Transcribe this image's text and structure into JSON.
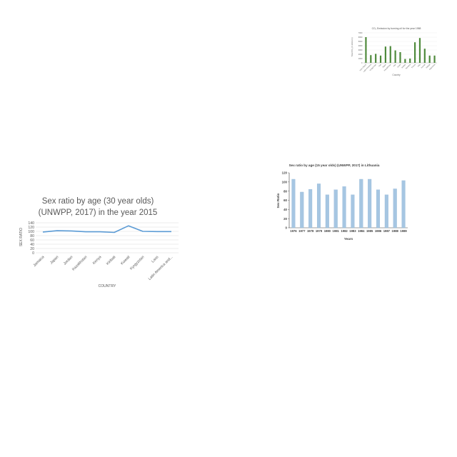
{
  "chart_data": [
    {
      "type": "bar",
      "title": "CO₂ Emission by burning oil for the year 1988",
      "xlabel": "Country",
      "ylabel": "Total CO₂ (in kilotons)",
      "ylim": [
        0,
        7000
      ],
      "yticks": [
        0,
        1000,
        2000,
        3000,
        4000,
        5000,
        6000,
        7000
      ],
      "grid": true,
      "categories": [
        "Non-OECD",
        "Latin America",
        "Kyrgyzstan",
        "Iraq",
        "Japan",
        "Kazakhstan",
        "Iran",
        "Israel",
        "Jordan",
        "Jamaica",
        "Kenya",
        "Italy",
        "Kuwait",
        "Kiribati",
        "Indonesia"
      ],
      "values": [
        6000,
        1800,
        2100,
        1700,
        3800,
        3900,
        2900,
        2500,
        900,
        1000,
        4800,
        5800,
        3300,
        1700,
        1700
      ],
      "color": "#4f8a3c"
    },
    {
      "type": "line",
      "title": "Sex ratio by age (30 year olds)\n(UNWPP, 2017) in the year 2015",
      "title_lines": [
        "Sex ratio by age (30 year olds)",
        "(UNWPP, 2017) in the year 2015"
      ],
      "xlabel": "COUNTRY",
      "ylabel": "SEX RATIO",
      "ylim": [
        0,
        140
      ],
      "yticks": [
        0,
        20,
        40,
        60,
        80,
        100,
        120,
        140
      ],
      "grid": true,
      "categories": [
        "Jamaica",
        "Japan",
        "Jordan",
        "Kazakhstan",
        "Kenya",
        "Kiribati",
        "Kuwait",
        "Kyrgyzstan",
        "Laos",
        "Latin America and..."
      ],
      "values": [
        97,
        103,
        102,
        98,
        98,
        95,
        126,
        100,
        99,
        99
      ],
      "color": "#5b9bd5"
    },
    {
      "type": "bar",
      "title": "Sex ratio by age (15 year olds) (UNWPP, 2017) in Lithuania",
      "xlabel": "Years",
      "ylabel": "Sex Ratio",
      "ylim": [
        0,
        120
      ],
      "yticks": [
        0,
        20,
        40,
        60,
        80,
        100,
        120
      ],
      "grid": false,
      "categories": [
        "1976",
        "1977",
        "1978",
        "1979",
        "1980",
        "1981",
        "1982",
        "1983",
        "1984",
        "1985",
        "1986",
        "1987",
        "1988",
        "1989"
      ],
      "values": [
        106,
        78,
        84,
        96,
        72,
        83,
        90,
        72,
        106,
        106,
        83,
        72,
        85,
        103
      ],
      "color": "#a6c6e2"
    }
  ]
}
